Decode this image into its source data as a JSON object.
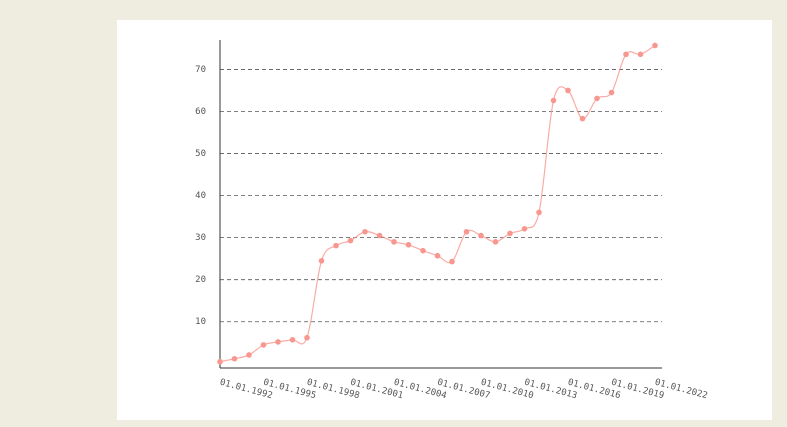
{
  "chart_data": {
    "type": "line",
    "categories": [
      "01.01.1992",
      null,
      null,
      "01.01.1995",
      null,
      null,
      "01.01.1998",
      null,
      null,
      "01.01.2001",
      null,
      null,
      "01.01.2004",
      null,
      null,
      "01.01.2007",
      null,
      null,
      "01.01.2010",
      null,
      null,
      "01.01.2013",
      null,
      null,
      "01.01.2016",
      null,
      null,
      "01.01.2019",
      null,
      null,
      "01.01.2022"
    ],
    "series": [
      {
        "color": "#f7978f",
        "values": [
          0.5,
          1.2,
          2.1,
          4.5,
          5.2,
          5.7,
          6.2,
          24.5,
          28.1,
          29.3,
          31.4,
          30.5,
          29.0,
          28.3,
          26.9,
          25.7,
          24.3,
          31.4,
          30.5,
          29.0,
          31.0,
          32.1,
          36.0,
          62.6,
          65.0,
          58.3,
          63.1,
          64.5,
          73.6,
          73.6,
          75.7
        ]
      }
    ],
    "ylim": [
      -1,
      77
    ],
    "yticks": [
      10,
      20,
      30,
      40,
      50,
      60,
      70
    ],
    "grid": true,
    "smooth": true
  }
}
